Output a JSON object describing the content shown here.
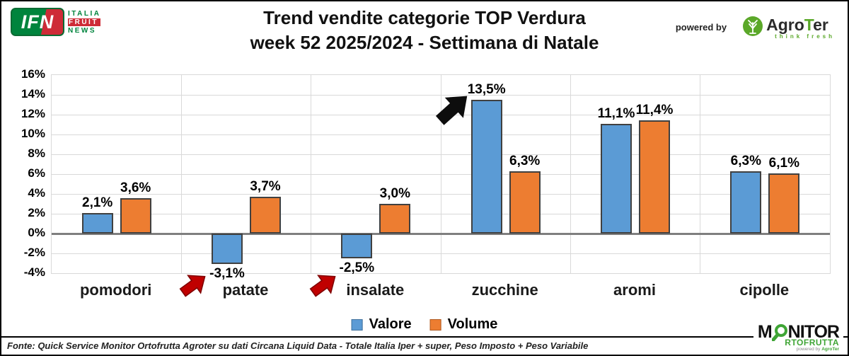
{
  "header": {
    "title_line1": "Trend vendite categorie TOP Verdura",
    "title_line2": "week 52 2025/2024 - Settimana di Natale",
    "ifn": {
      "mark": "IFN",
      "word1": "ITALIA",
      "word2": "FRUIT",
      "word3": "NEWS"
    },
    "powered_by": "powered by",
    "agroter": {
      "part1": "Agro",
      "part2": "T",
      "part3": "er",
      "tagline": "think fresh"
    }
  },
  "chart_data": {
    "type": "bar",
    "title": "Trend vendite categorie TOP Verdura week 52 2025/2024 - Settimana di Natale",
    "categories": [
      "pomodori",
      "patate",
      "insalate",
      "zucchine",
      "aromi",
      "cipolle"
    ],
    "series": [
      {
        "name": "Valore",
        "color": "#5b9bd5",
        "border": "#41719c",
        "values": [
          2.1,
          -3.1,
          -2.5,
          13.5,
          11.1,
          6.3
        ],
        "labels": [
          "2,1%",
          "-3,1%",
          "-2,5%",
          "13,5%",
          "11,1%",
          "6,3%"
        ]
      },
      {
        "name": "Volume",
        "color": "#ed7d31",
        "border": "#ae5a21",
        "values": [
          3.6,
          3.7,
          3.0,
          6.3,
          11.4,
          6.1
        ],
        "labels": [
          "3,6%",
          "3,7%",
          "3,0%",
          "6,3%",
          "11,4%",
          "6,1%"
        ]
      }
    ],
    "ylim": [
      -4,
      16
    ],
    "ytick_values": [
      16,
      14,
      12,
      10,
      8,
      6,
      4,
      2,
      0,
      -2,
      -4
    ],
    "ytick_labels": [
      "16%",
      "14%",
      "12%",
      "10%",
      "8%",
      "6%",
      "4%",
      "2%",
      "0%",
      "-2%",
      "-4%"
    ],
    "grid": true,
    "legend_position": "bottom"
  },
  "annotations": {
    "black_arrow_points_to": "zucchine 13,5%",
    "red_arrow_1_points_to": "patate -3,1%",
    "red_arrow_2_points_to": "insalate -2,5%"
  },
  "footer": {
    "fonte": "Fonte: Quick Service Monitor Ortofrutta Agroter su dati Circana Liquid Data - Totale Italia Iper + super, Peso Imposto + Peso Variabile",
    "monitor": {
      "m": "M",
      "rest": "NITOR",
      "line2": "RTOFRUTTA",
      "powered_prefix": "powered by ",
      "powered_brand": "AgroTer"
    }
  },
  "colors": {
    "valore": "#5b9bd5",
    "volume": "#ed7d31",
    "grid": "#d9d9d9",
    "zero_axis": "#7f7f7f",
    "black_arrow": "#0d0d0d",
    "red_arrow": "#c00000",
    "ifn_green": "#00843d",
    "ifn_red": "#ce2b37",
    "agroter_green": "#5ba829",
    "monitor_green": "#3fa535"
  }
}
